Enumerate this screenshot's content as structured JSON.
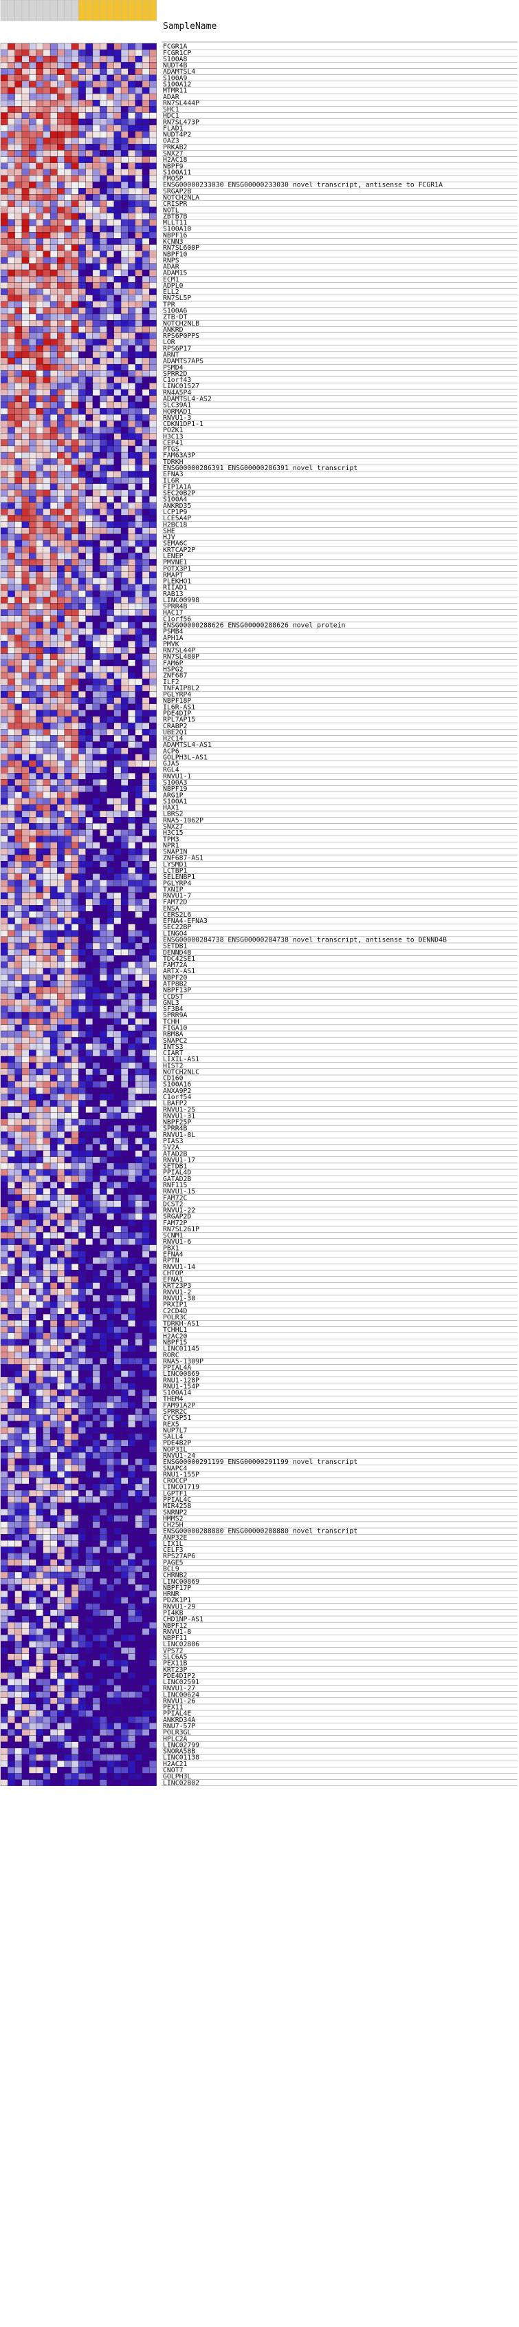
{
  "chart_data": {
    "type": "heatmap",
    "header": "SampleName",
    "column_header_colors": [
      "#d3d3d3",
      "#d3d3d3",
      "#d3d3d3",
      "#d3d3d3",
      "#d3d3d3",
      "#d3d3d3",
      "#d3d3d3",
      "#d3d3d3",
      "#d3d3d3",
      "#d3d3d3",
      "#d3d3d3",
      "#f2c230",
      "#f2c230",
      "#f2c230",
      "#f2c230",
      "#f2c230",
      "#f2c230",
      "#f2c230",
      "#f2c230",
      "#f2c230",
      "#f2c230",
      "#f2c230"
    ],
    "colors": {
      "high": "#c81414",
      "mid": "#f2f2f2",
      "low": "#2b18c4",
      "lowest": "#3a0093"
    },
    "rows": [
      "FCGR1A",
      "FCGR1CP",
      "S100A8",
      "NUDT4B",
      "ADAMTSL4",
      "S100A9",
      "S100A12",
      "MTMR11",
      "ADAR",
      "RN7SL444P",
      "SHC1",
      "HDC1",
      "RN7SL473P",
      "FLAD1",
      "NUDT4P2",
      "OAZ3",
      "PRKAB2",
      "SNX27",
      "H2AC18",
      "NBPF9",
      "S100A11",
      "FMO5P",
      "ENSG00000233030   ENSG00000233030  novel transcript, antisense to FCGR1A",
      "SRGAP2B",
      "NOTCH2NLA",
      "CRISPR",
      "NOTL",
      "ZBTB7B",
      "MLLT11",
      "S100A10",
      "NBPF16",
      "KCNN3",
      "RN7SL600P",
      "NBPF10",
      "RNPS",
      "ADAR",
      "ADAM15",
      "ECM1",
      "ADPL0",
      "ELL2",
      "RN7SL5P",
      "TPR",
      "S100A6",
      "ZTB-DT",
      "NOTCH2NLB",
      "ANKRD",
      "RPS6P0PPS",
      "LOR",
      "RPS6P17",
      "ARNT",
      "ADAMTS7APS",
      "PSMD4",
      "SPRR2D",
      "C1orf43",
      "LINC01527",
      "RN4A5P4",
      "ADAMTSL4-AS2",
      "SLC39A1",
      "HORMAD1",
      "RNVU1-3",
      "CDKN1DP1-1",
      "POZK1",
      "H3C13",
      "CEP41",
      "PTGS",
      "FAM63A3P",
      "TDRKH",
      "ENSG00000286391   ENSG00000286391  novel transcript",
      "EFNA3",
      "IL6R",
      "FIP1A1A",
      "SEC20B2P",
      "S100A4",
      "ANKRD35",
      "LCP1P9",
      "LCE5A4P",
      "H2BC18",
      "SHE",
      "HJV",
      "SEMA6C",
      "KRTCAP2P",
      "LENEP",
      "PMVNE1",
      "POTX3P1",
      "RMAPT",
      "PLEKHO1",
      "RIIAD1",
      "RAB13",
      "LINC00998",
      "SPRR4B",
      "HAC17",
      "C1orf56",
      "ENSG00000288626   ENSG00000288626  novel protein",
      "PSMB4",
      "APH1A",
      "PMVK",
      "RN7SL44P",
      "RN7SL480P",
      "FAM6P",
      "HSPG2",
      "ZNF687",
      "ILF2",
      "TNFAIP8L2",
      "PGLYRP4",
      "NBPF18P",
      "IL6R-AS1",
      "PDE4DIP",
      "RPL7AP15",
      "CRABP2",
      "UBE2Q1",
      "H2C14",
      "ADAMTSL4-AS1",
      "ACP6",
      "GOLPH3L-AS1",
      "GJA5",
      "RGL4",
      "RNVU1-1",
      "S100A3",
      "NBPF19",
      "ARG1P",
      "S100A1",
      "HAX1",
      "LBRS2",
      "RNA5-1062P",
      "SNX27",
      "H3C15",
      "TPM3",
      "NPR1",
      "SNAPIN",
      "ZNF687-AS1",
      "LYSMD1",
      "LCTBP1",
      "SELENBP1",
      "PGLYRP4",
      "TXNIP",
      "RNVU1-7",
      "FAM72D",
      "ENSA",
      "CERS2L6",
      "EFNA4-EFNA3",
      "SEC22BP",
      "LINGO4",
      "ENSG00000284738   ENSG00000284738  novel transcript, antisense to DENND4B",
      "SETDB1",
      "DENND4B",
      "TDC42SE1",
      "FAM72A",
      "ARTX-AS1",
      "NBPF20",
      "ATP8B2",
      "NBPF13P",
      "CCDST",
      "GNL3",
      "SF3B4",
      "SPRR9A",
      "TCHH",
      "FIGA10",
      "RBM8A",
      "SNAPC2",
      "INTS3",
      "CIART",
      "LIXIL-AS1",
      "HIST2",
      "NOTCH2NLC",
      "CD160",
      "S100A16",
      "ANXA9P2",
      "C1orf54",
      "LBAFP2",
      "RNVU1-25",
      "RNVU1-31",
      "NBPF25P",
      "SPRR4B",
      "RNVU1-8L",
      "PIAS3",
      "SV2A",
      "ATAD2B",
      "RNVU1-17",
      "SETDB1",
      "PPIAL4D",
      "GATAD2B",
      "RNF115",
      "RNVU1-15",
      "FAM72C",
      "DCST2",
      "RNVU1-22",
      "SRGAP2D",
      "FAM72P",
      "RN7SL261P",
      "SCNM1",
      "RNVU1-6",
      "PBX1",
      "EFNA4",
      "RPTN",
      "RNVU1-14",
      "CHTOP",
      "EFNA1",
      "KRT23P3",
      "RNVU1-2",
      "RNVU1-30",
      "PRXIP1",
      "C2CD4D",
      "POLR3C",
      "TDRKH-AS1",
      "TCHHL1",
      "H2AC20",
      "NBPF15",
      "LINC01145",
      "RORC",
      "RNA5-1309P",
      "PPIAL4A",
      "LINC00869",
      "RNU1-128P",
      "RNU1-154P",
      "S100A14",
      "THEM4",
      "FAM91A2P",
      "SPRR2C",
      "CYCSP51",
      "REX5",
      "NUP7L7",
      "SALL4",
      "PDE4B2P",
      "NOP3IL",
      "RNVU1-24",
      "ENSG00000291199   ENSG00000291199  novel transcript",
      "SNAPC4",
      "RNU1-155P",
      "CROCCP",
      "LINC01719",
      "LGPTF1",
      "PPIAL4C",
      "MIR4258",
      "SNRNP2",
      "HMMS2",
      "CH25H",
      "ENSG00000288880   ENSG00000288880  novel transcript",
      "ANP32E",
      "LIX1L",
      "CELF3",
      "RPS27AP6",
      "PAGE5",
      "BCL9",
      "CHRNB2",
      "LINC00869",
      "NBPF17P",
      "HRNR",
      "PDZK1P1",
      "RNVU1-29",
      "PI4KB",
      "CHD1NP-AS1",
      "NBPF12",
      "RNVU1-8",
      "NBPF11",
      "LINC02806",
      "VPS72",
      "SLC6A5",
      "PEX11B",
      "KRT23P",
      "PDE4DIP2",
      "LINC02591",
      "RNVU1-27",
      "LINC00624",
      "RNVU1-26",
      "PEX11",
      "PPIAL4E",
      "ANKRD34A",
      "RNU7-57P",
      "POLR3GL",
      "HPLC2A",
      "LINC02799",
      "SNORA58B",
      "LINC01138",
      "H2AC21",
      "CNOT7",
      "GOLPH3L",
      "LINC02802"
    ]
  }
}
